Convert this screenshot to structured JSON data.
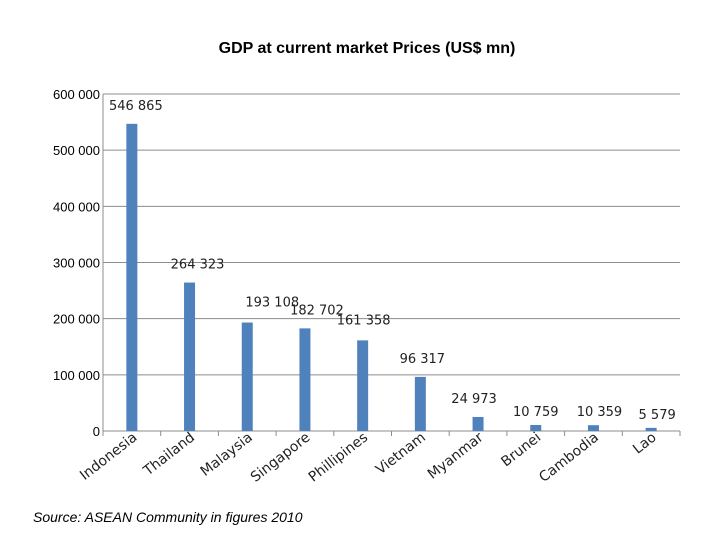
{
  "chart_data": {
    "type": "bar",
    "title": "GDP at current market Prices (US$ mn)",
    "xlabel": "",
    "ylabel": "",
    "ylim": [
      0,
      600000
    ],
    "y_ticks": [
      0,
      100000,
      200000,
      300000,
      400000,
      500000,
      600000
    ],
    "y_tick_labels": [
      "0",
      "100 000",
      "200 000",
      "300 000",
      "400 000",
      "500 000",
      "600 000"
    ],
    "grid": true,
    "categories": [
      "Indonesia",
      "Thailand",
      "Malaysia",
      "Singapore",
      "Phillipines",
      "Vietnam",
      "Myanmar",
      "Brunei",
      "Cambodia",
      "Lao"
    ],
    "values": [
      546865,
      264323,
      193108,
      182702,
      161358,
      96317,
      24973,
      10759,
      10359,
      5579
    ],
    "value_labels": [
      "546 865",
      "264 323",
      "193 108",
      "182 702",
      "161 358",
      "96 317",
      "24 973",
      "10 759",
      "10 359",
      "5 579"
    ],
    "bar_color": "#4f81bd"
  },
  "source": "Source: ASEAN Community in figures 2010"
}
